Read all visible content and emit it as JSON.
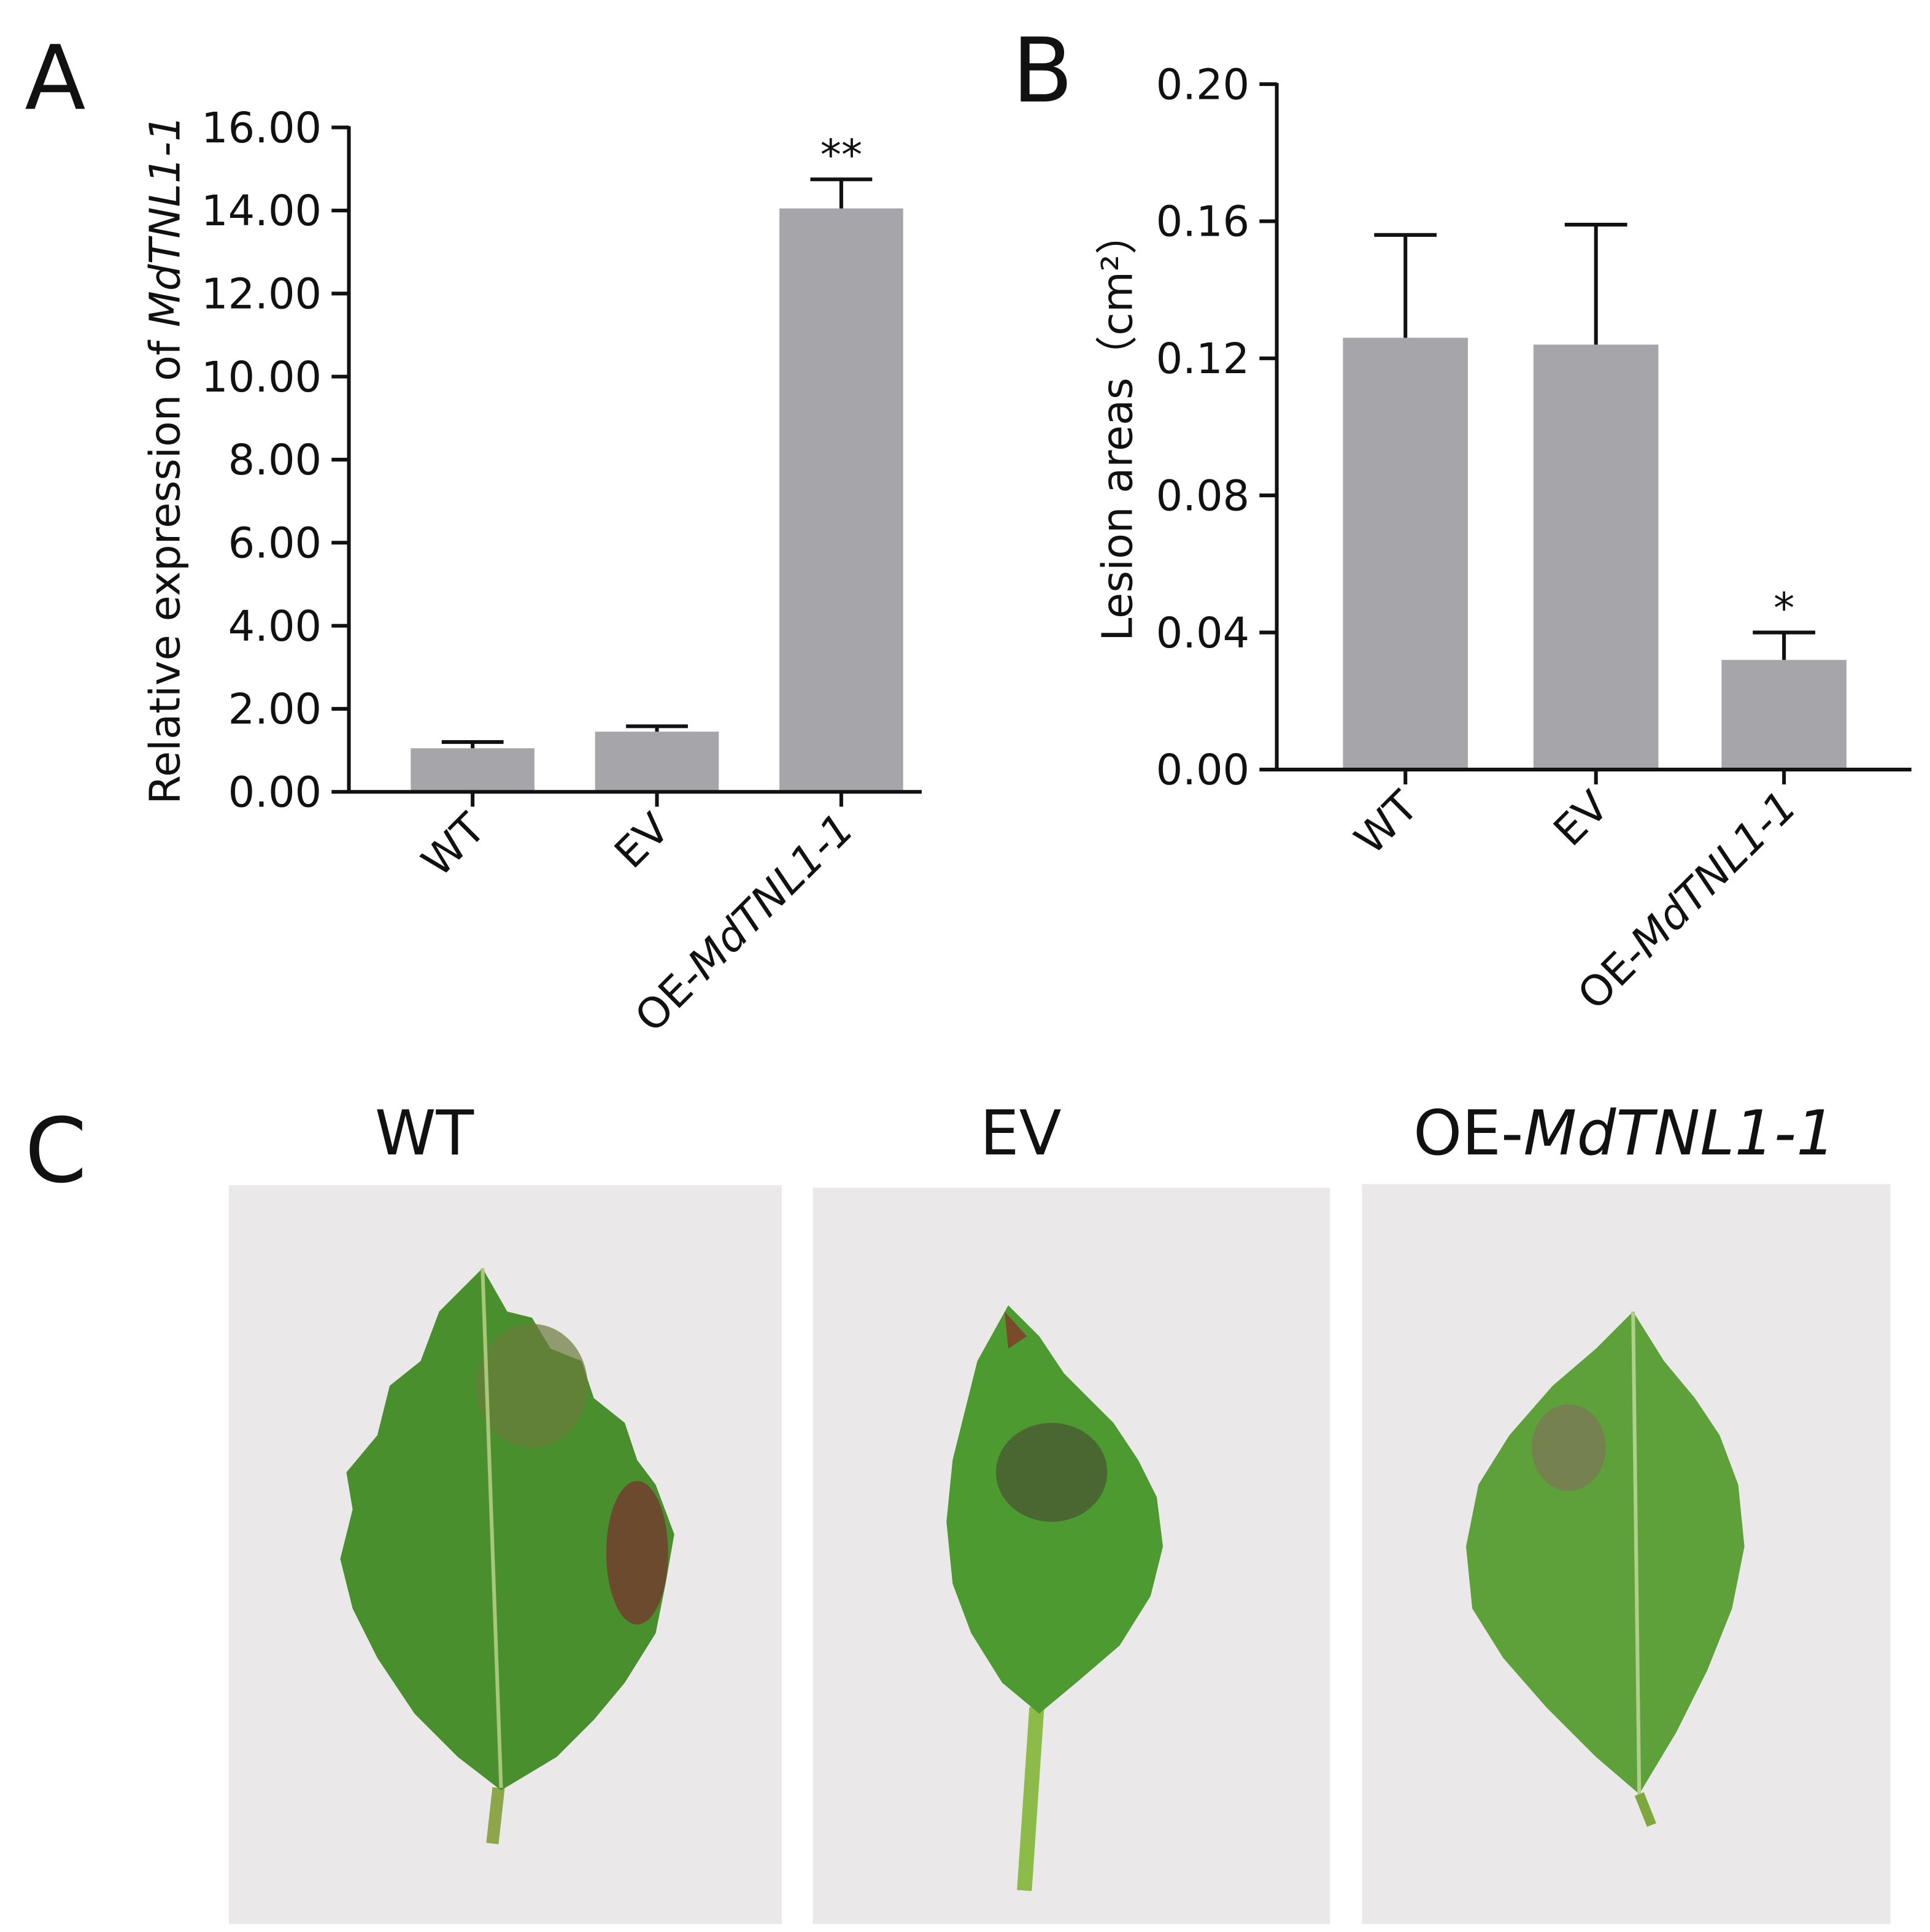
{
  "chart_data": [
    {
      "type": "bar",
      "panel": "A",
      "ylabel": "Relative expression of MdTNL1-1",
      "categories": [
        "WT",
        "EV",
        "OE-MdTNL1-1"
      ],
      "values": [
        1.05,
        1.45,
        14.05
      ],
      "errors": [
        0.15,
        0.13,
        0.7
      ],
      "significance": [
        null,
        null,
        "**"
      ],
      "color": "#a6a5aa",
      "ylim": [
        0,
        16
      ],
      "yticks": [
        {
          "value": 0,
          "label": "0.00"
        },
        {
          "value": 2,
          "label": "2.00"
        },
        {
          "value": 4,
          "label": "4.00"
        },
        {
          "value": 6,
          "label": "6.00"
        },
        {
          "value": 8,
          "label": "8.00"
        },
        {
          "value": 10,
          "label": "10.00"
        },
        {
          "value": 12,
          "label": "12.00"
        },
        {
          "value": 14,
          "label": "14.00"
        },
        {
          "value": 16,
          "label": "16.00"
        }
      ]
    },
    {
      "type": "bar",
      "panel": "B",
      "ylabel": "Lesion areas（cm²）",
      "categories": [
        "WT",
        "EV",
        "OE-MdTNL1-1"
      ],
      "values": [
        0.126,
        0.124,
        0.032
      ],
      "errors": [
        0.03,
        0.035,
        0.008
      ],
      "significance": [
        null,
        null,
        "*"
      ],
      "color": "#a6a5aa",
      "ylim": [
        0,
        0.2
      ],
      "yticks": [
        {
          "value": 0,
          "label": "0.00"
        },
        {
          "value": 0.04,
          "label": "0.04"
        },
        {
          "value": 0.08,
          "label": "0.08"
        },
        {
          "value": 0.12,
          "label": "0.12"
        },
        {
          "value": 0.16,
          "label": "0.16"
        },
        {
          "value": 0.2,
          "label": "0.20"
        }
      ]
    }
  ],
  "panel_c": {
    "label": "C",
    "titles": [
      "WT",
      "EV",
      "OE-MdTNL1-1"
    ]
  }
}
